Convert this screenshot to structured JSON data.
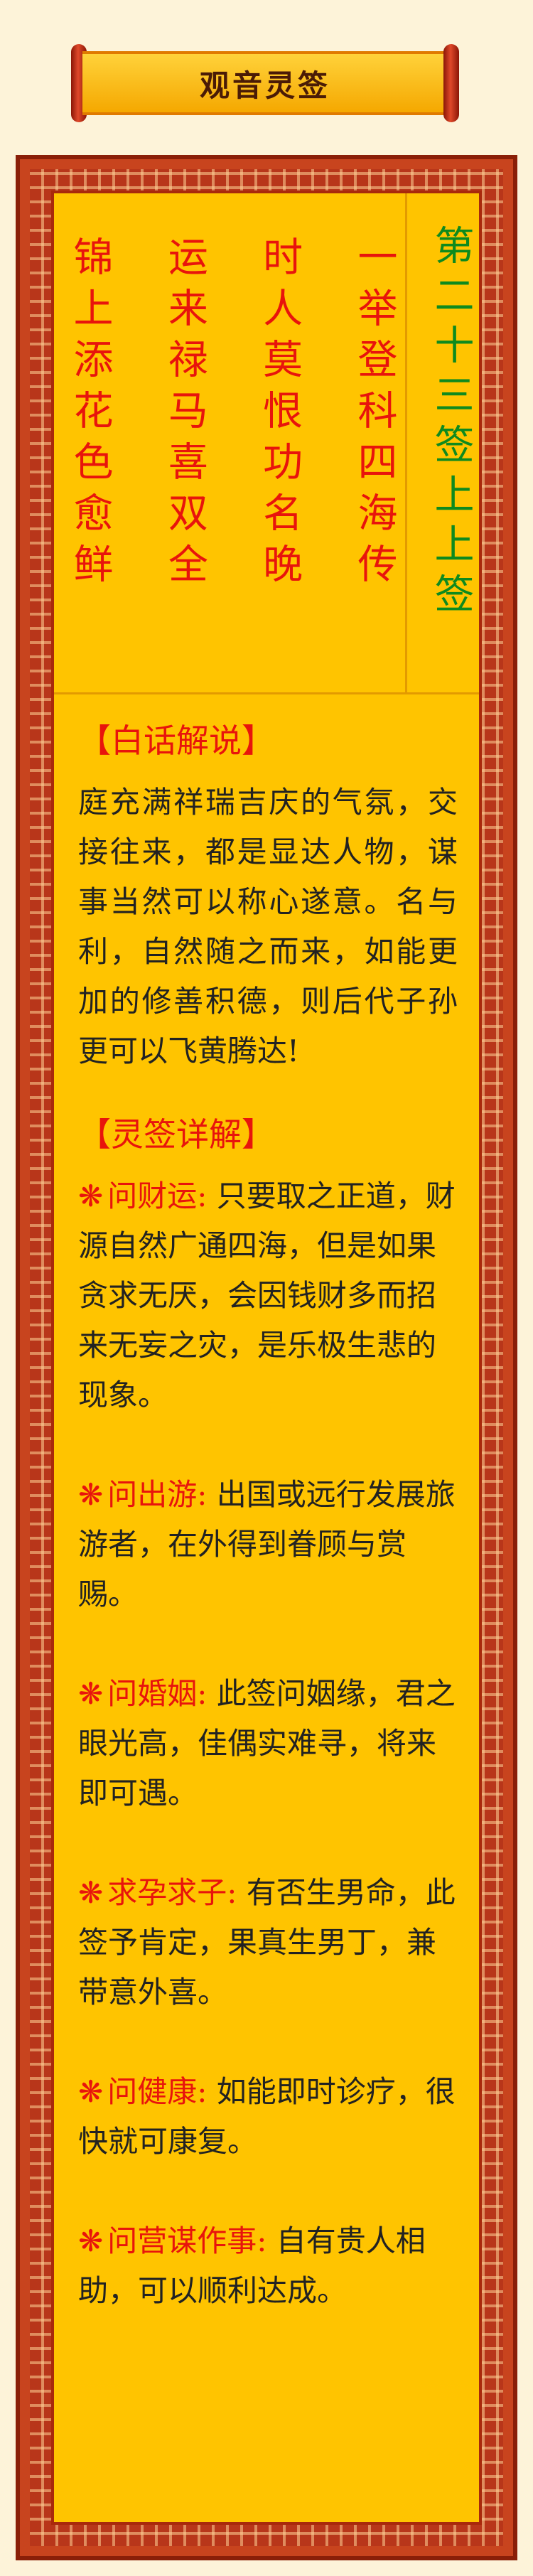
{
  "title": "观音灵签",
  "sign_name": "第二十三签上上签",
  "poem_lines": [
    "一举登科四海传",
    "时人莫恨功名晚",
    "运来禄马喜双全",
    "锦上添花色愈鲜"
  ],
  "vernacular": {
    "heading": "【白话解说】",
    "text": "庭充满祥瑞吉庆的气氛，交接往来，都是显达人物，谋事当然可以称心遂意。名与利，自然随之而来，如能更加的修善积德，则后代子孙更可以飞黄腾达!"
  },
  "details": {
    "heading": "【灵签详解】",
    "star": "❋",
    "items": [
      {
        "label": "问财运:",
        "text": "只要取之正道，财源自然广通四海，但是如果贪求无厌，会因钱财多而招来无妄之灾，是乐极生悲的现象。"
      },
      {
        "label": "问出游:",
        "text": "出国或远行发展旅游者，在外得到眷顾与赏赐。"
      },
      {
        "label": "问婚姻:",
        "text": "此签问姻缘，君之眼光高，佳偶实难寻，将来即可遇。"
      },
      {
        "label": "求孕求子:",
        "text": "有否生男命，此签予肯定，果真生男丁，兼带意外喜。"
      },
      {
        "label": "问健康:",
        "text": "如能即时诊疗，很快就可康复。"
      },
      {
        "label": "问营谋作事:",
        "text": "自有贵人相助，可以顺利达成。"
      }
    ]
  }
}
